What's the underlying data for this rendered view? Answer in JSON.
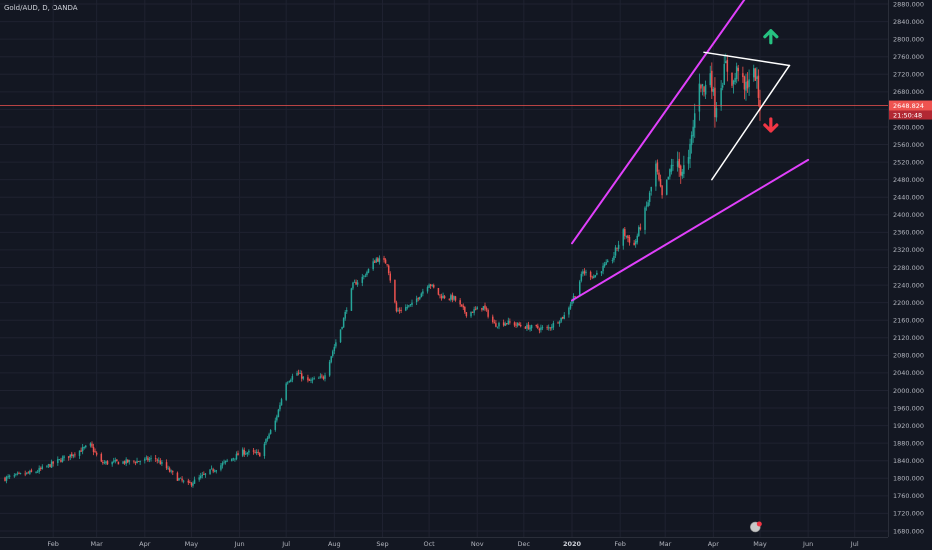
{
  "chart_data": {
    "type": "candlestick",
    "title": "Gold/AUD, D, OANDA",
    "y_ticks": [
      1680,
      1720,
      1760,
      1800,
      1840,
      1880,
      1920,
      1960,
      2000,
      2040,
      2080,
      2120,
      2160,
      2200,
      2240,
      2280,
      2320,
      2360,
      2400,
      2440,
      2480,
      2520,
      2560,
      2600,
      2640,
      2680,
      2720,
      2760,
      2800,
      2840,
      2880
    ],
    "y_tick_labels": [
      "1680.000",
      "1720.000",
      "1760.000",
      "1800.000",
      "1840.000",
      "1880.000",
      "1920.000",
      "1960.000",
      "2000.000",
      "2040.000",
      "2080.000",
      "2120.000",
      "2160.000",
      "2200.000",
      "2240.000",
      "2280.000",
      "2320.000",
      "2360.000",
      "2400.000",
      "2440.000",
      "2480.000",
      "2520.000",
      "2560.000",
      "2600.000",
      "2640.000",
      "2680.000",
      "2720.000",
      "2760.000",
      "2800.000",
      "2840.000",
      "2880.000"
    ],
    "x_tick_labels": [
      "Feb",
      "Mar",
      "Apr",
      "May",
      "Jun",
      "Jul",
      "Aug",
      "Sep",
      "Oct",
      "Nov",
      "Dec",
      "2020",
      "Feb",
      "Mar",
      "Apr",
      "May",
      "Jun",
      "Jul"
    ],
    "ylim": [
      1680,
      2880
    ],
    "last_price": 2648.8,
    "last_price_label": "2648.824",
    "countdown_label": "21:50:48",
    "colors": {
      "up": "#26a69a",
      "down": "#ef5350",
      "channel": "#e040fb",
      "triangle": "#ffffff",
      "arrow_up": "#26c281",
      "arrow_down": "#f23645",
      "background": "#131722",
      "grid": "#1f2230"
    },
    "key_closes": [
      {
        "date": "2019-01-21",
        "value": 1815
      },
      {
        "date": "2019-02-25",
        "value": 1875
      },
      {
        "date": "2019-03-04",
        "value": 1835
      },
      {
        "date": "2019-03-25",
        "value": 1838
      },
      {
        "date": "2019-04-08",
        "value": 1845
      },
      {
        "date": "2019-04-22",
        "value": 1800
      },
      {
        "date": "2019-04-29",
        "value": 1785
      },
      {
        "date": "2019-05-20",
        "value": 1830
      },
      {
        "date": "2019-06-03",
        "value": 1860
      },
      {
        "date": "2019-06-14",
        "value": 1855
      },
      {
        "date": "2019-06-24",
        "value": 1930
      },
      {
        "date": "2019-07-01",
        "value": 2020
      },
      {
        "date": "2019-07-08",
        "value": 2040
      },
      {
        "date": "2019-07-15",
        "value": 2020
      },
      {
        "date": "2019-07-25",
        "value": 2030
      },
      {
        "date": "2019-08-06",
        "value": 2150
      },
      {
        "date": "2019-08-13",
        "value": 2240
      },
      {
        "date": "2019-08-20",
        "value": 2260
      },
      {
        "date": "2019-08-28",
        "value": 2300
      },
      {
        "date": "2019-09-04",
        "value": 2290
      },
      {
        "date": "2019-09-10",
        "value": 2180
      },
      {
        "date": "2019-09-20",
        "value": 2195
      },
      {
        "date": "2019-10-01",
        "value": 2245
      },
      {
        "date": "2019-10-08",
        "value": 2215
      },
      {
        "date": "2019-10-17",
        "value": 2210
      },
      {
        "date": "2019-10-25",
        "value": 2175
      },
      {
        "date": "2019-11-05",
        "value": 2190
      },
      {
        "date": "2019-11-12",
        "value": 2150
      },
      {
        "date": "2019-11-20",
        "value": 2155
      },
      {
        "date": "2019-12-02",
        "value": 2145
      },
      {
        "date": "2019-12-16",
        "value": 2140
      },
      {
        "date": "2019-12-27",
        "value": 2170
      },
      {
        "date": "2020-01-03",
        "value": 2220
      },
      {
        "date": "2020-01-08",
        "value": 2270
      },
      {
        "date": "2020-01-15",
        "value": 2260
      },
      {
        "date": "2020-01-27",
        "value": 2300
      },
      {
        "date": "2020-02-03",
        "value": 2360
      },
      {
        "date": "2020-02-10",
        "value": 2330
      },
      {
        "date": "2020-02-19",
        "value": 2430
      },
      {
        "date": "2020-02-24",
        "value": 2510
      },
      {
        "date": "2020-02-28",
        "value": 2440
      },
      {
        "date": "2020-03-06",
        "value": 2520
      },
      {
        "date": "2020-03-12",
        "value": 2500
      },
      {
        "date": "2020-03-16",
        "value": 2520
      },
      {
        "date": "2020-03-19",
        "value": 2600
      },
      {
        "date": "2020-03-23",
        "value": 2710
      },
      {
        "date": "2020-03-26",
        "value": 2680
      },
      {
        "date": "2020-03-30",
        "value": 2730
      },
      {
        "date": "2020-04-02",
        "value": 2640
      },
      {
        "date": "2020-04-06",
        "value": 2700
      },
      {
        "date": "2020-04-09",
        "value": 2740
      },
      {
        "date": "2020-04-14",
        "value": 2700
      },
      {
        "date": "2020-04-17",
        "value": 2740
      },
      {
        "date": "2020-04-21",
        "value": 2680
      },
      {
        "date": "2020-04-24",
        "value": 2715
      },
      {
        "date": "2020-04-28",
        "value": 2720
      },
      {
        "date": "2020-05-01",
        "value": 2649
      }
    ],
    "drawings": {
      "upper_channel": {
        "from": {
          "date": "2020-01-01",
          "value": 2335
        },
        "to": {
          "date": "2020-04-23",
          "value": 2900
        }
      },
      "lower_channel": {
        "from": {
          "date": "2020-01-01",
          "value": 2205
        },
        "to": {
          "date": "2020-06-01",
          "value": 2525
        }
      },
      "triangle_top": {
        "from": {
          "date": "2020-03-26",
          "value": 2770
        },
        "to": {
          "date": "2020-05-20",
          "value": 2740
        }
      },
      "triangle_bottom": {
        "from": {
          "date": "2020-03-31",
          "value": 2480
        },
        "to": {
          "date": "2020-05-20",
          "value": 2740
        }
      },
      "arrow_up": {
        "date": "2020-05-08",
        "value": 2810
      },
      "arrow_down": {
        "date": "2020-05-08",
        "value": 2600
      }
    }
  }
}
